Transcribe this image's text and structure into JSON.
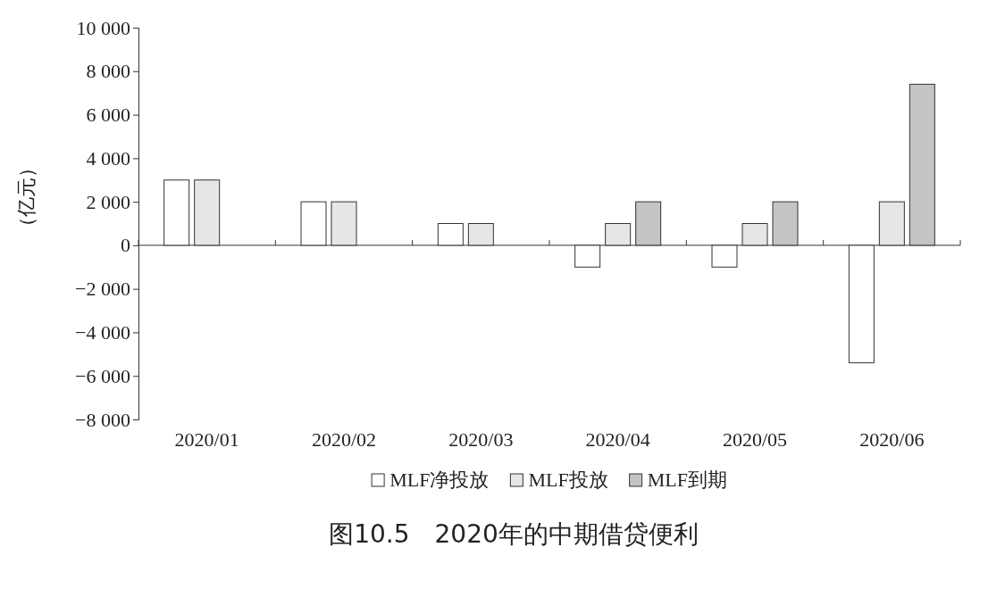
{
  "chart_data": {
    "type": "bar",
    "title": "图10.5　2020年的中期借贷便利",
    "ylabel": "（亿元）",
    "categories": [
      "2020/01",
      "2020/02",
      "2020/03",
      "2020/04",
      "2020/05",
      "2020/06"
    ],
    "series": [
      {
        "name": "MLF净投放",
        "color": "#ffffff",
        "values": [
          3000,
          2000,
          1000,
          -1000,
          -1000,
          -5400
        ]
      },
      {
        "name": "MLF投放",
        "color": "#e6e6e6",
        "values": [
          3000,
          2000,
          1000,
          1000,
          1000,
          2000
        ]
      },
      {
        "name": "MLF到期",
        "color": "#c4c4c4",
        "values": [
          null,
          null,
          null,
          2000,
          2000,
          7400
        ]
      }
    ],
    "ylim": [
      -8000,
      10000
    ],
    "yticks": [
      {
        "value": -8000,
        "label": "−8 000"
      },
      {
        "value": -6000,
        "label": "−6 000"
      },
      {
        "value": -4000,
        "label": "−4 000"
      },
      {
        "value": -2000,
        "label": "−2 000"
      },
      0,
      {
        "value": 2000,
        "label": "2 000"
      },
      {
        "value": 4000,
        "label": "4 000"
      },
      {
        "value": 6000,
        "label": "6 000"
      },
      {
        "value": 8000,
        "label": "8 000"
      },
      {
        "value": 10000,
        "label": "10 000"
      }
    ],
    "legend": "bottom"
  }
}
